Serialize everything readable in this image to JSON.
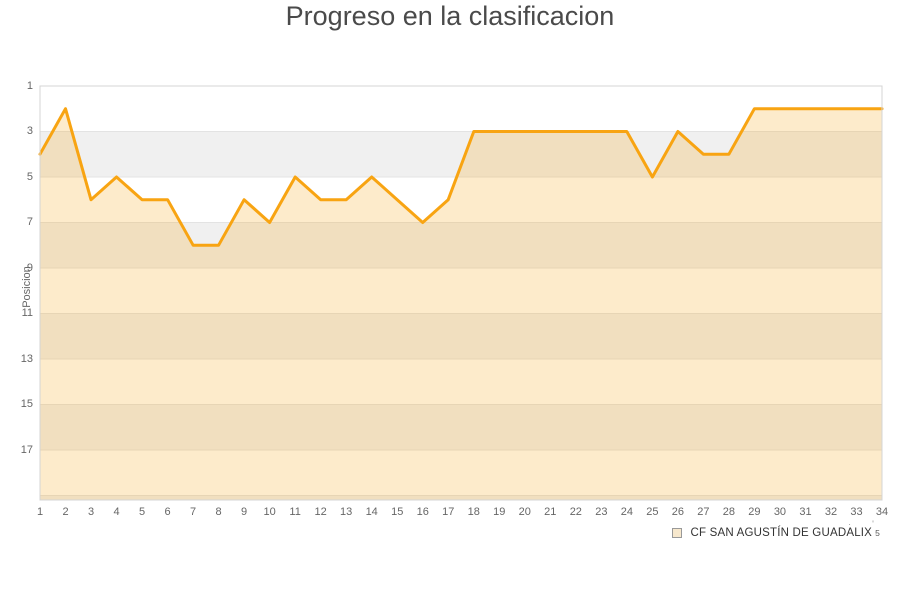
{
  "title": "Progreso en la clasificacion",
  "legend": {
    "label": "CF SAN AGUSTÍN DE GUADALIX",
    "superscript": "5",
    "marks": "· '",
    "marker_fill": "#F7E8CD",
    "marker_border": "#999999"
  },
  "chart_data": {
    "type": "area",
    "title": "Progreso en la clasificacion",
    "xlabel": "",
    "ylabel": "Posicion",
    "x": [
      1,
      2,
      3,
      4,
      5,
      6,
      7,
      8,
      9,
      10,
      11,
      12,
      13,
      14,
      15,
      16,
      17,
      18,
      19,
      20,
      21,
      22,
      23,
      24,
      25,
      26,
      27,
      28,
      29,
      30,
      31,
      32,
      33,
      34
    ],
    "series": [
      {
        "name": "CF SAN AGUSTÍN DE GUADALIX",
        "values": [
          4,
          2,
          6,
          5,
          6,
          6,
          8,
          8,
          6,
          7,
          5,
          6,
          6,
          5,
          6,
          7,
          6,
          3,
          3,
          3,
          3,
          3,
          3,
          3,
          5,
          3,
          4,
          4,
          2,
          2,
          2,
          2,
          2,
          2
        ]
      }
    ],
    "y_ticks": [
      1,
      3,
      5,
      7,
      9,
      11,
      13,
      15,
      17
    ],
    "ylim": [
      1,
      19.2
    ],
    "y_inverted": true,
    "grid": true,
    "legend_position": "bottom-right",
    "line_color": "#F8A412",
    "fill_color": "rgba(248,164,18,0.22)",
    "band_colors": [
      "#FFFFFF",
      "#F0F0F0"
    ],
    "grid_color": "#E3E3E3",
    "border_color": "#D4D4D4",
    "title_color": "#4A4A4A",
    "axis_label_color": "#666666"
  }
}
